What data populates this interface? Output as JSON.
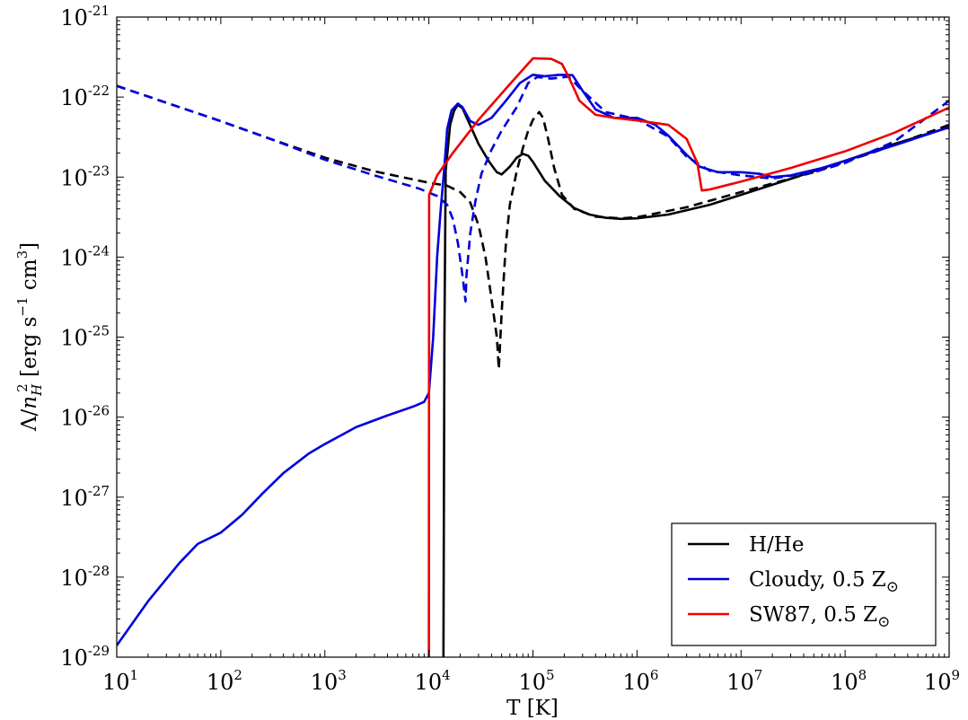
{
  "chart_data": {
    "type": "line",
    "xscale": "log",
    "yscale": "log",
    "xlim": [
      10,
      1000000000
    ],
    "ylim": [
      1e-29,
      1e-21
    ],
    "xlabel": "T [K]",
    "ylabel": "Λ/n_H² [erg s⁻¹ cm³]",
    "ylabel_parts": {
      "lambda": "Λ/",
      "n": "n",
      "sub": "H",
      "sup": "2",
      "unit1": " [erg s",
      "unit1_sup": "−1",
      "unit2": " cm",
      "unit2_sup": "3",
      "close": "]"
    },
    "x_ticks": [
      {
        "base": "10",
        "exp": "1"
      },
      {
        "base": "10",
        "exp": "2"
      },
      {
        "base": "10",
        "exp": "3"
      },
      {
        "base": "10",
        "exp": "4"
      },
      {
        "base": "10",
        "exp": "5"
      },
      {
        "base": "10",
        "exp": "6"
      },
      {
        "base": "10",
        "exp": "7"
      },
      {
        "base": "10",
        "exp": "8"
      },
      {
        "base": "10",
        "exp": "9"
      }
    ],
    "y_ticks": [
      {
        "base": "10",
        "exp": "-29"
      },
      {
        "base": "10",
        "exp": "-28"
      },
      {
        "base": "10",
        "exp": "-27"
      },
      {
        "base": "10",
        "exp": "-26"
      },
      {
        "base": "10",
        "exp": "-25"
      },
      {
        "base": "10",
        "exp": "-24"
      },
      {
        "base": "10",
        "exp": "-23"
      },
      {
        "base": "10",
        "exp": "-22"
      },
      {
        "base": "10",
        "exp": "-21"
      }
    ],
    "grid": false,
    "legend_position": "lower-right",
    "legend": [
      {
        "label": "H/He",
        "sub": "",
        "color": "#000000"
      },
      {
        "label": "Cloudy, 0.5 Z",
        "sub": "⊙",
        "color": "#0000dd"
      },
      {
        "label": "SW87, 0.5 Z",
        "sub": "⊙",
        "color": "#ee0000"
      }
    ],
    "series": [
      {
        "key": "hhe_solid",
        "name": "H/He",
        "color": "#000000",
        "dash": "solid",
        "points": [
          [
            13800,
            1e-29
          ],
          [
            14100,
            1e-25
          ],
          [
            14500,
            1.2e-23
          ],
          [
            16000,
            4.5e-23
          ],
          [
            17500,
            6.8e-23
          ],
          [
            19000,
            8e-23
          ],
          [
            21000,
            7.3e-23
          ],
          [
            25000,
            4.4e-23
          ],
          [
            30000,
            2.6e-23
          ],
          [
            38000,
            1.55e-23
          ],
          [
            45000,
            1.15e-23
          ],
          [
            50000,
            1.08e-23
          ],
          [
            60000,
            1.35e-23
          ],
          [
            70000,
            1.75e-23
          ],
          [
            80000,
            1.95e-23
          ],
          [
            90000,
            1.85e-23
          ],
          [
            100000,
            1.55e-23
          ],
          [
            130000,
            9e-24
          ],
          [
            180000,
            5.8e-24
          ],
          [
            250000,
            4.1e-24
          ],
          [
            350000,
            3.4e-24
          ],
          [
            500000,
            3.1e-24
          ],
          [
            700000,
            3e-24
          ],
          [
            1000000,
            3.05e-24
          ],
          [
            2000000,
            3.4e-24
          ],
          [
            5000000,
            4.5e-24
          ],
          [
            10000000,
            6e-24
          ],
          [
            30000000,
            9.5e-24
          ],
          [
            100000000,
            1.6e-23
          ],
          [
            300000000,
            2.6e-23
          ],
          [
            1000000000,
            4.2e-23
          ]
        ]
      },
      {
        "key": "hhe_dashed",
        "name": "",
        "color": "#000000",
        "dash": "dashed",
        "points": [
          [
            10,
            1.38e-22
          ],
          [
            30,
            8.5e-23
          ],
          [
            100,
            5e-23
          ],
          [
            300,
            3e-23
          ],
          [
            1000,
            1.75e-23
          ],
          [
            3000,
            1.18e-23
          ],
          [
            10000,
            8.5e-24
          ],
          [
            15000,
            7.8e-24
          ],
          [
            20000,
            6.5e-24
          ],
          [
            25000,
            4.8e-24
          ],
          [
            30000,
            2.5e-24
          ],
          [
            35000,
            1e-24
          ],
          [
            40000,
            3e-25
          ],
          [
            45000,
            1e-25
          ],
          [
            47000,
            4e-26
          ],
          [
            50000,
            2e-25
          ],
          [
            55000,
            1.5e-24
          ],
          [
            60000,
            4.5e-24
          ],
          [
            70000,
            1.2e-23
          ],
          [
            80000,
            2.3e-23
          ],
          [
            90000,
            3.8e-23
          ],
          [
            100000,
            5.2e-23
          ],
          [
            115000,
            6.5e-23
          ],
          [
            125000,
            5.5e-23
          ],
          [
            140000,
            3e-23
          ],
          [
            160000,
            1.3e-23
          ],
          [
            190000,
            6e-24
          ],
          [
            250000,
            4e-24
          ],
          [
            400000,
            3.2e-24
          ],
          [
            700000,
            3.05e-24
          ],
          [
            1000000,
            3.15e-24
          ],
          [
            3000000,
            4.2e-24
          ],
          [
            10000000,
            6.5e-24
          ],
          [
            50000000,
            1.15e-23
          ],
          [
            200000000,
            2.1e-23
          ],
          [
            1000000000,
            4.5e-23
          ]
        ]
      },
      {
        "key": "cloudy_solid",
        "name": "Cloudy, 0.5 Z⊙",
        "color": "#0000dd",
        "dash": "solid",
        "points": [
          [
            10,
            1.4e-29
          ],
          [
            20,
            5e-29
          ],
          [
            40,
            1.5e-28
          ],
          [
            60,
            2.6e-28
          ],
          [
            100,
            3.6e-28
          ],
          [
            160,
            6e-28
          ],
          [
            250,
            1.1e-27
          ],
          [
            400,
            2e-27
          ],
          [
            700,
            3.5e-27
          ],
          [
            1000,
            4.6e-27
          ],
          [
            2000,
            7.5e-27
          ],
          [
            4000,
            1.05e-26
          ],
          [
            7000,
            1.35e-26
          ],
          [
            9000,
            1.55e-26
          ],
          [
            10000,
            2e-26
          ],
          [
            11000,
            1e-25
          ],
          [
            12000,
            1e-24
          ],
          [
            13000,
            4e-24
          ],
          [
            14000,
            1.2e-23
          ],
          [
            15000,
            4e-23
          ],
          [
            16500,
            6.8e-23
          ],
          [
            19000,
            8.3e-23
          ],
          [
            21000,
            7.5e-23
          ],
          [
            25000,
            5e-23
          ],
          [
            30000,
            4.5e-23
          ],
          [
            40000,
            5.5e-23
          ],
          [
            55000,
            9e-23
          ],
          [
            75000,
            1.5e-22
          ],
          [
            100000,
            1.9e-22
          ],
          [
            130000,
            1.82e-22
          ],
          [
            180000,
            1.9e-22
          ],
          [
            240000,
            1.88e-22
          ],
          [
            300000,
            1.2e-22
          ],
          [
            400000,
            7e-23
          ],
          [
            600000,
            5.5e-23
          ],
          [
            1000000,
            5.5e-23
          ],
          [
            1500000,
            4.5e-23
          ],
          [
            2000000,
            3.3e-23
          ],
          [
            3000000,
            1.9e-23
          ],
          [
            4000000,
            1.35e-23
          ],
          [
            6000000,
            1.15e-23
          ],
          [
            10000000,
            1.15e-23
          ],
          [
            15000000,
            1.1e-23
          ],
          [
            20000000,
            1e-23
          ],
          [
            30000000,
            1.05e-23
          ],
          [
            60000000,
            1.3e-23
          ],
          [
            100000000,
            1.6e-23
          ],
          [
            300000000,
            2.5e-23
          ],
          [
            1000000000,
            4.2e-23
          ]
        ]
      },
      {
        "key": "cloudy_dashed",
        "name": "",
        "color": "#0000dd",
        "dash": "dashed",
        "points": [
          [
            10,
            1.38e-22
          ],
          [
            30,
            8.5e-23
          ],
          [
            100,
            5e-23
          ],
          [
            300,
            3e-23
          ],
          [
            1000,
            1.65e-23
          ],
          [
            3000,
            1.05e-23
          ],
          [
            8000,
            7.2e-24
          ],
          [
            12000,
            5.8e-24
          ],
          [
            15000,
            4.5e-24
          ],
          [
            17000,
            3e-24
          ],
          [
            19000,
            1.5e-24
          ],
          [
            21000,
            6e-25
          ],
          [
            22500,
            2.8e-25
          ],
          [
            23000,
            6e-25
          ],
          [
            25000,
            2e-24
          ],
          [
            28000,
            5e-24
          ],
          [
            32000,
            1.1e-23
          ],
          [
            40000,
            2.2e-23
          ],
          [
            50000,
            3.8e-23
          ],
          [
            70000,
            7.5e-23
          ],
          [
            90000,
            1.5e-22
          ],
          [
            110000,
            1.78e-22
          ],
          [
            150000,
            1.7e-22
          ],
          [
            220000,
            1.8e-22
          ],
          [
            300000,
            1.2e-22
          ],
          [
            500000,
            6.5e-23
          ],
          [
            1000000,
            5.3e-23
          ],
          [
            2000000,
            3.2e-23
          ],
          [
            3000000,
            1.8e-23
          ],
          [
            5000000,
            1.2e-23
          ],
          [
            10000000,
            1.05e-23
          ],
          [
            20000000,
            9.6e-24
          ],
          [
            50000000,
            1.15e-23
          ],
          [
            100000000,
            1.5e-23
          ],
          [
            300000000,
            2.8e-23
          ],
          [
            1000000000,
            9e-23
          ]
        ]
      },
      {
        "key": "sw87",
        "name": "SW87, 0.5 Z⊙",
        "color": "#ee0000",
        "dash": "solid",
        "points": [
          [
            10000,
            1e-29
          ],
          [
            10050,
            6e-24
          ],
          [
            12000,
            1.05e-23
          ],
          [
            17000,
            2e-23
          ],
          [
            30000,
            5.2e-23
          ],
          [
            60000,
            1.45e-22
          ],
          [
            100000,
            3.05e-22
          ],
          [
            150000,
            3e-22
          ],
          [
            190000,
            2.6e-22
          ],
          [
            220000,
            1.8e-22
          ],
          [
            280000,
            9e-23
          ],
          [
            400000,
            6e-23
          ],
          [
            600000,
            5.5e-23
          ],
          [
            1000000,
            5.1e-23
          ],
          [
            2000000,
            4.5e-23
          ],
          [
            3000000,
            3e-23
          ],
          [
            3800000,
            1.5e-23
          ],
          [
            4200000,
            6.8e-24
          ],
          [
            5000000,
            7e-24
          ],
          [
            10000000,
            8.8e-24
          ],
          [
            30000000,
            1.3e-23
          ],
          [
            100000000,
            2.1e-23
          ],
          [
            300000000,
            3.6e-23
          ],
          [
            1000000000,
            7.4e-23
          ]
        ]
      }
    ]
  }
}
